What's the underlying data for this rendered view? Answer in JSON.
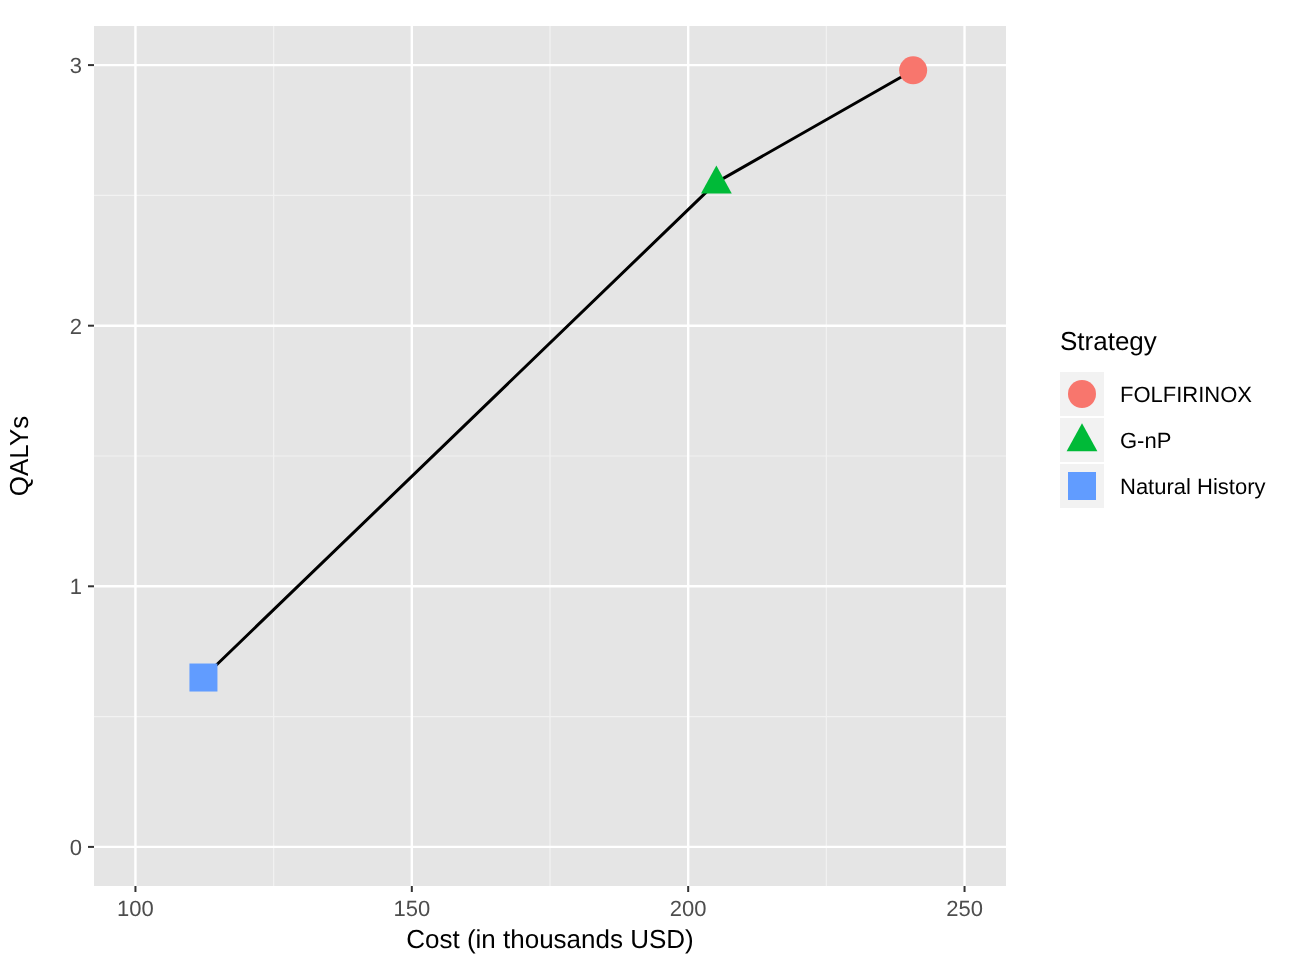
{
  "chart_data": {
    "type": "line",
    "xlabel": "Cost (in thousands USD)",
    "ylabel": "QALYs",
    "legend_title": "Strategy",
    "xlim": [
      92.5,
      257.5
    ],
    "xticks": [
      100,
      150,
      200,
      250
    ],
    "ylim": [
      -0.15,
      3.15
    ],
    "yticks": [
      0,
      1,
      2,
      3
    ],
    "grid": true,
    "legend": "right",
    "series": [
      {
        "color": "#000000",
        "x": [
          112.3,
          205.1,
          240.7
        ],
        "values": [
          0.65,
          2.55,
          2.98
        ],
        "marker": "none"
      },
      {
        "type": "scatter",
        "name": "FOLFIRINOX",
        "color": "#f8766d",
        "marker": "circle",
        "x": [
          240.7
        ],
        "values": [
          2.98
        ]
      },
      {
        "type": "scatter",
        "name": "G-nP",
        "color": "#00ba38",
        "marker": "triangle",
        "x": [
          205.1
        ],
        "values": [
          2.55
        ]
      },
      {
        "type": "scatter",
        "name": "Natural History",
        "color": "#619cff",
        "marker": "square",
        "x": [
          112.3
        ],
        "values": [
          0.65
        ]
      }
    ]
  }
}
